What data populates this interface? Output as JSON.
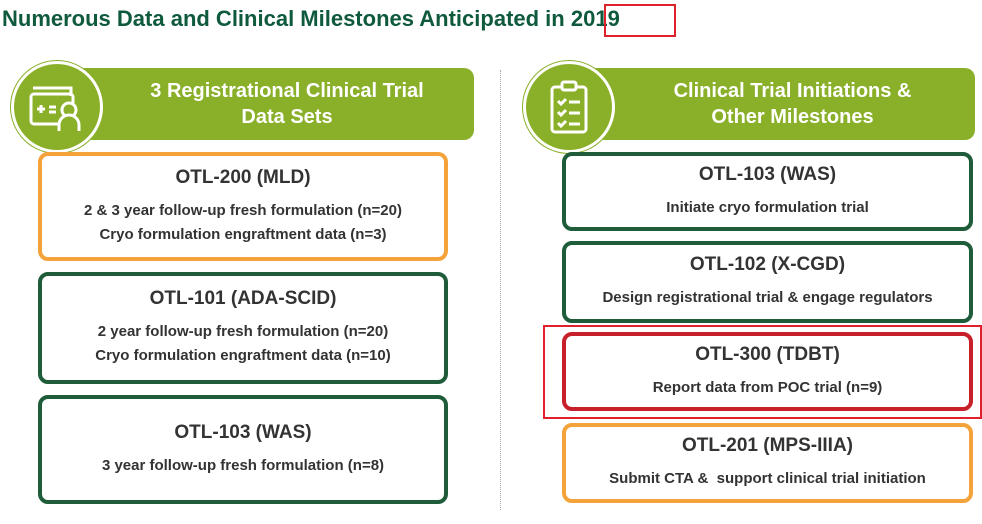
{
  "title": {
    "prefix": "Numerous Data and Clinical Milestones Anticipated in",
    "year": "2019"
  },
  "left": {
    "heading_line1": "3 Registrational Clinical Trial",
    "heading_line2": "Data Sets",
    "icon": "medical-record-person-icon",
    "boxes": [
      {
        "name": "OTL-200 (MLD)",
        "lines": [
          "2 & 3 year follow-up fresh formulation (n=20)",
          "Cryo formulation engraftment data (n=3)"
        ]
      },
      {
        "name": "OTL-101 (ADA-SCID)",
        "lines": [
          "2 year follow-up fresh formulation (n=20)",
          "Cryo formulation engraftment data (n=10)"
        ]
      },
      {
        "name": "OTL-103 (WAS)",
        "lines": [
          "3 year follow-up fresh formulation (n=8)"
        ]
      }
    ]
  },
  "right": {
    "heading_line1": "Clinical Trial Initiations &",
    "heading_line2": "Other Milestones",
    "icon": "clipboard-checklist-icon",
    "boxes": [
      {
        "name": "OTL-103 (WAS)",
        "lines": [
          "Initiate cryo formulation trial"
        ]
      },
      {
        "name": "OTL-102 (X-CGD)",
        "lines": [
          "Design registrational trial & engage regulators"
        ]
      },
      {
        "name": "OTL-300 (TDBT)",
        "lines": [
          "Report data from POC trial (n=9)"
        ]
      },
      {
        "name": "OTL-201 (MPS-IIIA)",
        "lines": [
          "Submit CTA &  support clinical trial initiation"
        ]
      }
    ]
  },
  "colors": {
    "green": "#8ab02a",
    "dark_green": "#1e5c3a",
    "orange": "#f4a33a",
    "red": "#c8202a"
  }
}
